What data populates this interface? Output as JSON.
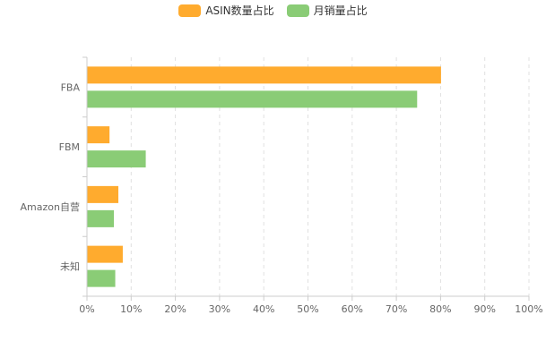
{
  "chart_data": {
    "type": "bar",
    "orientation": "horizontal",
    "categories": [
      "FBA",
      "FBM",
      "Amazon自营",
      "未知"
    ],
    "series": [
      {
        "name": "ASIN数量占比",
        "color": "#FFAB2E",
        "values": [
          80,
          5,
          7,
          8
        ]
      },
      {
        "name": "月销量占比",
        "color": "#8ACC76",
        "values": [
          74.6,
          13.2,
          6,
          6.3
        ]
      }
    ],
    "x_ticks": [
      "0%",
      "10%",
      "20%",
      "30%",
      "40%",
      "50%",
      "60%",
      "70%",
      "80%",
      "90%",
      "100%"
    ],
    "xlim": [
      0,
      100
    ],
    "x_unit": "%",
    "grid": "vertical dashed",
    "legend_position": "top-center"
  }
}
